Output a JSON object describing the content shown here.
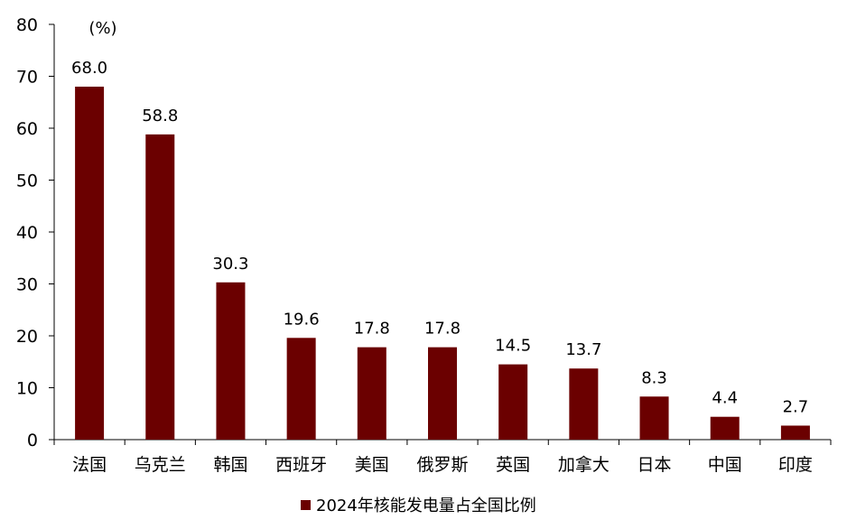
{
  "chart_data": {
    "type": "bar",
    "unit_label": "(%)",
    "categories": [
      "法国",
      "乌克兰",
      "韩国",
      "西班牙",
      "美国",
      "俄罗斯",
      "英国",
      "加拿大",
      "日本",
      "中国",
      "印度"
    ],
    "series": [
      {
        "name": "2024年核能发电量占全国比例",
        "color": "#6b0000",
        "values": [
          68.0,
          58.8,
          30.3,
          19.6,
          17.8,
          17.8,
          14.5,
          13.7,
          8.3,
          4.4,
          2.7
        ],
        "labels": [
          "68.0",
          "58.8",
          "30.3",
          "19.6",
          "17.8",
          "17.8",
          "14.5",
          "13.7",
          "8.3",
          "4.4",
          "2.7"
        ]
      }
    ],
    "ylim": [
      0,
      80
    ],
    "yticks": [
      0,
      10,
      20,
      30,
      40,
      50,
      60,
      70,
      80
    ],
    "grid": false,
    "legend_position": "bottom"
  }
}
